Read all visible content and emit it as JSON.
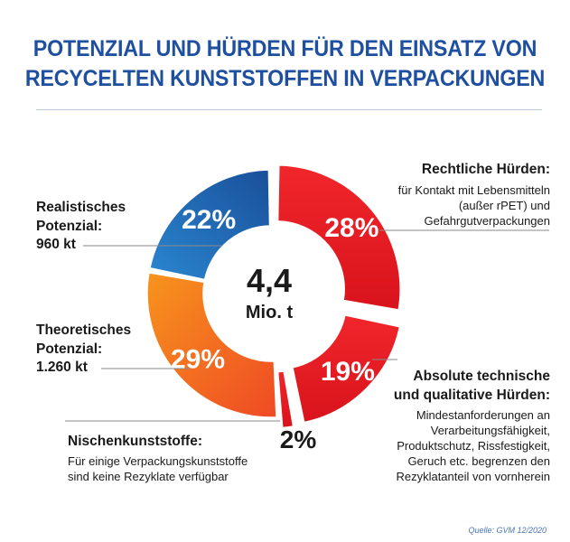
{
  "title_line1": "POTENZIAL UND HÜRDEN FÜR DEN EINSATZ VON",
  "title_line2": "RECYCELTEN KUNSTSTOFFEN IN VERPACKUNGEN",
  "source": "Quelle: GVM 12/2020",
  "labels": {
    "realistisch": {
      "line1": "Realistisches",
      "line2": "Potenzial:",
      "value": "960 kt"
    },
    "theoretisch": {
      "line1": "Theoretisches",
      "line2": "Potenzial:",
      "value": "1.260 kt"
    },
    "rechtlich": {
      "head": "Rechtliche Hürden:",
      "line1": "für Kontakt mit Lebensmitteln",
      "line2": "(außer rPET) und",
      "line3": "Gefahrgutverpackungen"
    },
    "absolut": {
      "head1": "Absolute technische",
      "head2": "und qualitative Hürden:",
      "line1": "Mindestanforderungen an",
      "line2": "Verarbeitungsfähigkeit,",
      "line3": "Produktschutz, Rissfestigkeit,",
      "line4": "Geruch etc. begrenzen den",
      "line5": "Rezyklatanteil von vornherein"
    },
    "nischen": {
      "head": "Nischenkunststoffe:",
      "line1": "Für einige Verpackungskunststoffe",
      "line2": "sind keine Rezyklate verfügbar"
    }
  },
  "chart_data": {
    "type": "pie",
    "title": "Potenzial und Hürden für den Einsatz von recycelten Kunststoffen in Verpackungen",
    "center_value": "4,4",
    "center_unit": "Mio. t",
    "total": 4.4,
    "unit": "Mio. t",
    "series": [
      {
        "name": "Rechtliche Hürden",
        "value": 28,
        "label": "28%",
        "color": "#e8232a"
      },
      {
        "name": "Absolute technische und qualitative Hürden",
        "value": 19,
        "label": "19%",
        "color": "#e8232a"
      },
      {
        "name": "Nischenkunststoffe",
        "value": 2,
        "label": "2%",
        "color": "#e8232a"
      },
      {
        "name": "Theoretisches Potenzial",
        "value": 29,
        "label": "29%",
        "color": "#f47c20"
      },
      {
        "name": "Realistisches Potenzial",
        "value": 22,
        "label": "22%",
        "color": "#1f6fbf"
      }
    ]
  }
}
